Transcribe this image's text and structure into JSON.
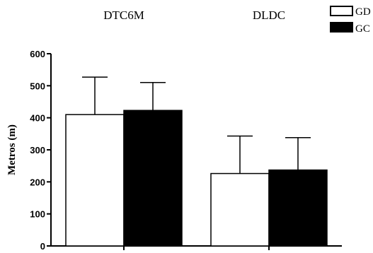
{
  "chart_data": {
    "type": "bar",
    "categories": [
      "DTC6M",
      "DLDC"
    ],
    "series": [
      {
        "name": "GD",
        "values": [
          410,
          226
        ],
        "error": [
          117,
          117
        ],
        "color": "#ffffff"
      },
      {
        "name": "GC",
        "values": [
          423,
          237
        ],
        "error": [
          87,
          101
        ],
        "color": "#000000"
      }
    ],
    "ylabel": "Metros (m)",
    "ylim": [
      0,
      600
    ],
    "yticks": [
      0,
      100,
      200,
      300,
      400,
      500,
      600
    ],
    "grid": false,
    "legend": "top-right"
  }
}
